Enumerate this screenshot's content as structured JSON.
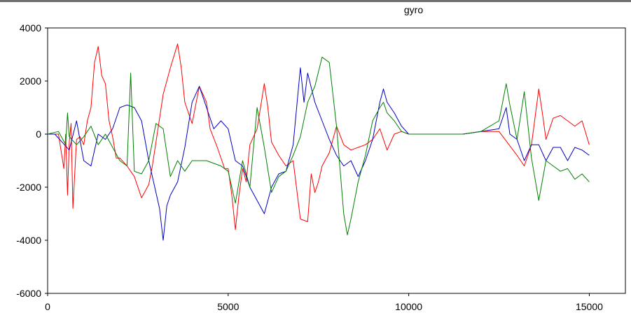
{
  "chart_data": {
    "type": "line",
    "title": "gyro",
    "xlabel": "",
    "ylabel": "",
    "xlim": [
      0,
      16000
    ],
    "ylim": [
      -6000,
      4000
    ],
    "x_ticks": [
      0,
      5000,
      10000,
      15000
    ],
    "y_ticks": [
      4000,
      2000,
      0,
      -2000,
      -4000,
      -6000
    ],
    "x_tick_labels": [
      "0",
      "5000",
      "10000",
      "15000"
    ],
    "y_tick_labels": [
      "4000",
      "2000",
      "0",
      "-2000",
      "-4000",
      "-6000"
    ],
    "grid": false,
    "legend": "none",
    "series": [
      {
        "color": "#ff0000",
        "x": [
          0,
          300,
          450,
          500,
          550,
          600,
          650,
          700,
          800,
          900,
          1000,
          1100,
          1200,
          1300,
          1400,
          1500,
          1600,
          1700,
          1800,
          1900,
          2000,
          2200,
          2400,
          2600,
          2800,
          2900,
          3000,
          3200,
          3400,
          3600,
          3700,
          3800,
          4000,
          4200,
          4400,
          4500,
          4700,
          4900,
          5000,
          5100,
          5200,
          5300,
          5400,
          5500,
          5600,
          5800,
          6000,
          6100,
          6200,
          6400,
          6600,
          6800,
          7000,
          7200,
          7300,
          7400,
          7500,
          7600,
          7800,
          8000,
          8200,
          8400,
          8600,
          8800,
          9000,
          9200,
          9400,
          9600,
          9800,
          10000,
          10500,
          11000,
          11500,
          12000,
          12500,
          13000,
          13200,
          13400,
          13600,
          13700,
          13800,
          14000,
          14200,
          14400,
          14600,
          14800,
          15000
        ],
        "y": [
          0,
          0,
          -1300,
          0,
          -2300,
          -300,
          400,
          -2800,
          -200,
          -100,
          -400,
          500,
          1000,
          2700,
          3300,
          2200,
          1900,
          500,
          -100,
          -900,
          -900,
          -1200,
          -1600,
          -2400,
          -1900,
          -1200,
          -300,
          1500,
          2500,
          3400,
          2500,
          1200,
          400,
          1800,
          1200,
          200,
          -500,
          -1300,
          -1300,
          -2300,
          -3600,
          -2300,
          -1300,
          -1800,
          -400,
          200,
          1900,
          1000,
          -300,
          -800,
          -1200,
          -1000,
          -3200,
          -3300,
          -1500,
          -2200,
          -1800,
          -1200,
          -700,
          300,
          -400,
          -600,
          -500,
          -400,
          -200,
          200,
          -600,
          0,
          100,
          0,
          0,
          0,
          0,
          100,
          100,
          -800,
          -1200,
          -400,
          1700,
          800,
          -200,
          600,
          700,
          500,
          300,
          500,
          -400
        ]
      },
      {
        "color": "#0000c0",
        "x": [
          0,
          200,
          400,
          600,
          800,
          1000,
          1200,
          1400,
          1600,
          1800,
          2000,
          2200,
          2400,
          2600,
          2800,
          3000,
          3100,
          3200,
          3300,
          3400,
          3600,
          3800,
          4000,
          4200,
          4400,
          4600,
          4800,
          5000,
          5200,
          5400,
          5600,
          5800,
          6000,
          6200,
          6400,
          6600,
          6800,
          7000,
          7100,
          7200,
          7400,
          7600,
          7800,
          8000,
          8200,
          8400,
          8600,
          8800,
          9000,
          9200,
          9300,
          9400,
          9600,
          9800,
          10000,
          10500,
          11000,
          11500,
          12000,
          12500,
          12700,
          12800,
          13000,
          13200,
          13400,
          13600,
          13800,
          14000,
          14200,
          14400,
          14600,
          14800,
          15000
        ],
        "y": [
          0,
          0,
          -300,
          -600,
          500,
          -1000,
          -1200,
          0,
          -200,
          200,
          1000,
          1100,
          1000,
          500,
          -1000,
          -2200,
          -2800,
          -4000,
          -2700,
          -2300,
          -1800,
          -500,
          1200,
          1800,
          1000,
          200,
          500,
          200,
          -1000,
          -1200,
          -2000,
          -2500,
          -3000,
          -2000,
          -1500,
          -1400,
          -400,
          2500,
          1200,
          2300,
          1200,
          500,
          -200,
          -800,
          -1200,
          -1000,
          -1600,
          -1000,
          -200,
          1200,
          1700,
          1200,
          800,
          300,
          0,
          0,
          0,
          0,
          100,
          200,
          1000,
          0,
          -200,
          -1000,
          -400,
          -400,
          -1000,
          -500,
          -500,
          -1000,
          -500,
          -600,
          -800
        ]
      },
      {
        "color": "#008000",
        "x": [
          0,
          300,
          500,
          550,
          600,
          800,
          1000,
          1200,
          1400,
          1600,
          1800,
          2000,
          2200,
          2300,
          2400,
          2600,
          2800,
          3000,
          3200,
          3400,
          3600,
          3800,
          4000,
          4400,
          4800,
          5000,
          5200,
          5400,
          5600,
          5800,
          6000,
          6200,
          6400,
          6600,
          6800,
          7000,
          7200,
          7400,
          7600,
          7800,
          8000,
          8200,
          8300,
          8400,
          8600,
          8800,
          9000,
          9200,
          9300,
          9400,
          9600,
          9800,
          10000,
          10500,
          11000,
          11500,
          12000,
          12500,
          12600,
          12700,
          12800,
          13000,
          13200,
          13400,
          13600,
          13800,
          14000,
          14200,
          14400,
          14600,
          14800,
          15000
        ],
        "y": [
          0,
          100,
          -400,
          800,
          -100,
          -400,
          -100,
          300,
          -400,
          0,
          -500,
          -1000,
          -1200,
          2300,
          -1400,
          -1500,
          -1000,
          400,
          200,
          -1600,
          -1000,
          -1400,
          -1000,
          -1000,
          -1200,
          -1400,
          -2600,
          -1000,
          -2000,
          1000,
          -500,
          -2200,
          -1600,
          -1400,
          -800,
          -100,
          1200,
          1800,
          2900,
          2700,
          300,
          -3000,
          -3800,
          -3200,
          -1800,
          -800,
          500,
          1000,
          1200,
          800,
          500,
          100,
          0,
          0,
          0,
          0,
          100,
          500,
          1200,
          1900,
          1100,
          -200,
          1600,
          -900,
          -2500,
          -1000,
          -1200,
          -1400,
          -1300,
          -1700,
          -1500,
          -1800
        ]
      }
    ]
  }
}
